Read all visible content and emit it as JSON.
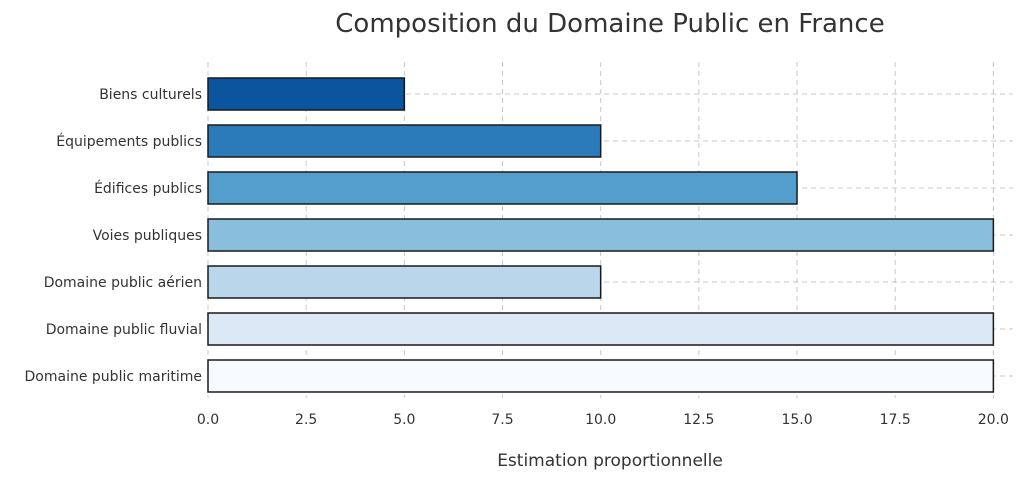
{
  "chart_data": {
    "type": "bar",
    "orientation": "horizontal",
    "title": "Composition du Domaine Public en France",
    "xlabel": "Estimation proportionnelle",
    "ylabel": "",
    "categories": [
      "Domaine public maritime",
      "Domaine public fluvial",
      "Domaine public aérien",
      "Voies publiques",
      "Édifices publics",
      "Équipements publics",
      "Biens culturels"
    ],
    "values": [
      20,
      20,
      10,
      20,
      15,
      10,
      5
    ],
    "colors": [
      "#f7fbff",
      "#dbe9f6",
      "#bad6eb",
      "#89bedc",
      "#539ecd",
      "#2b7bba",
      "#0b559f"
    ],
    "edge_color": "#1a1a1a",
    "xlim": [
      0,
      20.5
    ],
    "xticks": [
      "0.0",
      "2.5",
      "5.0",
      "7.5",
      "10.0",
      "12.5",
      "15.0",
      "17.5",
      "20.0"
    ],
    "grid": true
  }
}
